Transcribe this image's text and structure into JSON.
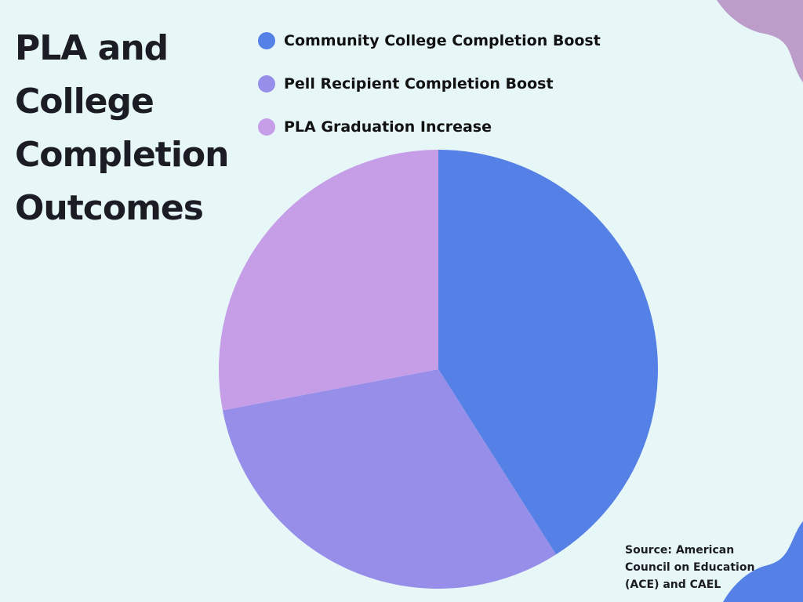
{
  "title": {
    "line1": "PLA and",
    "line2": "College",
    "line3": "Completion",
    "line4": "Outcomes"
  },
  "legend": [
    {
      "label": "Community College Completion Boost",
      "color": "#5580e6"
    },
    {
      "label": "Pell Recipient Completion Boost",
      "color": "#978ee9"
    },
    {
      "label": "PLA Graduation Increase",
      "color": "#c69ee8"
    }
  ],
  "source": {
    "line1": "Source: American",
    "line2": "Council on Education",
    "line3": "(ACE) and CAEL"
  },
  "colors": {
    "background": "#e7f7f8",
    "blob_top": "#bc9dca",
    "blob_bottom": "#5580e6",
    "text": "#1b1c24"
  },
  "chart_data": {
    "type": "pie",
    "title": "PLA and College Completion Outcomes",
    "categories": [
      "Community College Completion Boost",
      "Pell Recipient Completion Boost",
      "PLA Graduation Increase"
    ],
    "values": [
      41,
      31,
      28
    ],
    "colors": [
      "#5580e6",
      "#978ee9",
      "#c69ee8"
    ],
    "start_angle": "12 o'clock, clockwise",
    "legend_position": "top",
    "annotations": [
      "Source: American Council on Education (ACE) and CAEL"
    ]
  }
}
